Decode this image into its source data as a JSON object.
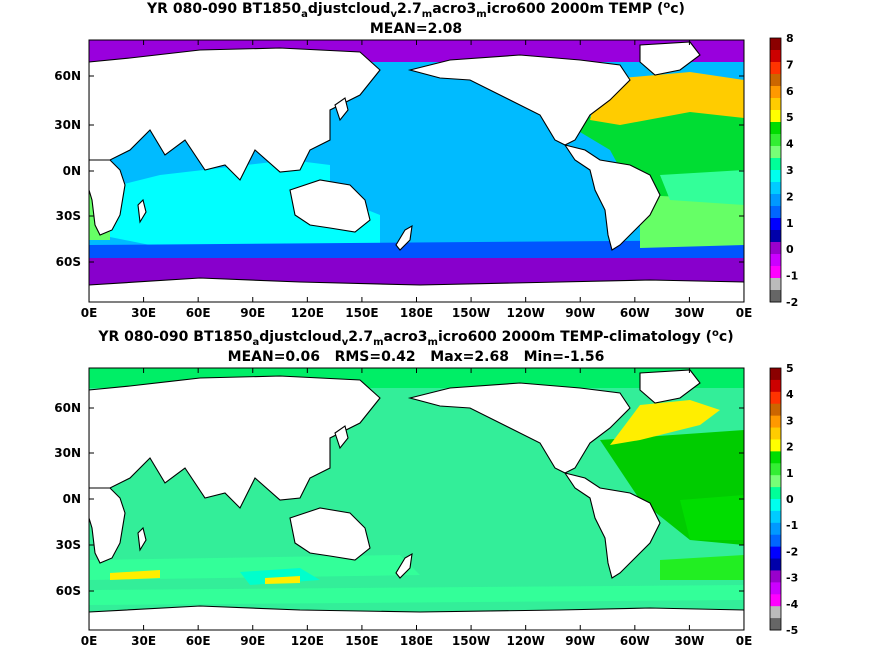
{
  "panels": [
    {
      "title_parts": [
        "YR 080-090 BT1850",
        "a",
        "djustcloud",
        "v",
        "2.7",
        "m",
        "acro3",
        "m",
        "icro600 2000m TEMP (",
        "o",
        "c)"
      ],
      "subtitle": "MEAN=2.08",
      "x_ticks": [
        "0E",
        "30E",
        "60E",
        "90E",
        "120E",
        "150E",
        "180E",
        "150W",
        "120W",
        "90W",
        "60W",
        "30W",
        "0E"
      ],
      "y_ticks": [
        "60N",
        "30N",
        "0N",
        "30S",
        "60S"
      ],
      "colorbar_labels": [
        "8",
        "7",
        "6",
        "5",
        "4",
        "3",
        "2",
        "1",
        "0",
        "-1",
        "-2"
      ],
      "colorbar_colors": [
        "#8b0000",
        "#cc0000",
        "#ff3300",
        "#cc6600",
        "#ff9900",
        "#ffcc00",
        "#ffff00",
        "#00dd00",
        "#33ee33",
        "#77ff77",
        "#00ff99",
        "#00ffee",
        "#00ccff",
        "#0099ff",
        "#0066ff",
        "#0000ff",
        "#0000aa",
        "#9900cc",
        "#cc00ff",
        "#ff00ff",
        "#bbbbbb",
        "#666666"
      ],
      "ocean_colors": {
        "base": "#00bbff",
        "indian": "#00ffff",
        "south": "#0055ff",
        "antarctic": "#8800cc",
        "arctic": "#9900dd",
        "natl_warm": "#ffcc00",
        "natl": "#00dd33",
        "satl": "#66ff66",
        "satl_east": "#33ff99",
        "deep": "#0000cc"
      }
    },
    {
      "title_parts": [
        "YR 080-090 BT1850",
        "a",
        "djustcloud",
        "v",
        "2.7",
        "m",
        "acro3",
        "m",
        "icro600 2000m TEMP-climatology (",
        "o",
        "c)"
      ],
      "subtitle": "MEAN=0.06   RMS=0.42   Max=2.68   Min=-1.56",
      "x_ticks": [
        "0E",
        "30E",
        "60E",
        "90E",
        "120E",
        "150E",
        "180E",
        "150W",
        "120W",
        "90W",
        "60W",
        "30W",
        "0E"
      ],
      "y_ticks": [
        "60N",
        "30N",
        "0N",
        "30S",
        "60S"
      ],
      "colorbar_labels": [
        "5",
        "4",
        "3",
        "2",
        "1",
        "0",
        "-1",
        "-2",
        "-3",
        "-4",
        "-5"
      ],
      "colorbar_colors": [
        "#8b0000",
        "#cc0000",
        "#ff3300",
        "#cc6600",
        "#ff9900",
        "#ffcc00",
        "#ffff00",
        "#00dd00",
        "#33ee33",
        "#77ff77",
        "#00ff99",
        "#00ffee",
        "#00ccff",
        "#0099ff",
        "#0066ff",
        "#0000ff",
        "#0000aa",
        "#9900cc",
        "#cc00ff",
        "#ff00ff",
        "#bbbbbb",
        "#666666"
      ],
      "ocean_colors": {
        "base": "#33ee99",
        "indian": "#33ff99",
        "south": "#33ff99",
        "antarctic": "#00ffcc",
        "arctic": "#00ee66",
        "natl_warm": "#ffee00",
        "natl": "#00cc00",
        "satl": "#00dd00",
        "satl_east": "#22ee22",
        "deep": "#00ccff"
      }
    }
  ]
}
